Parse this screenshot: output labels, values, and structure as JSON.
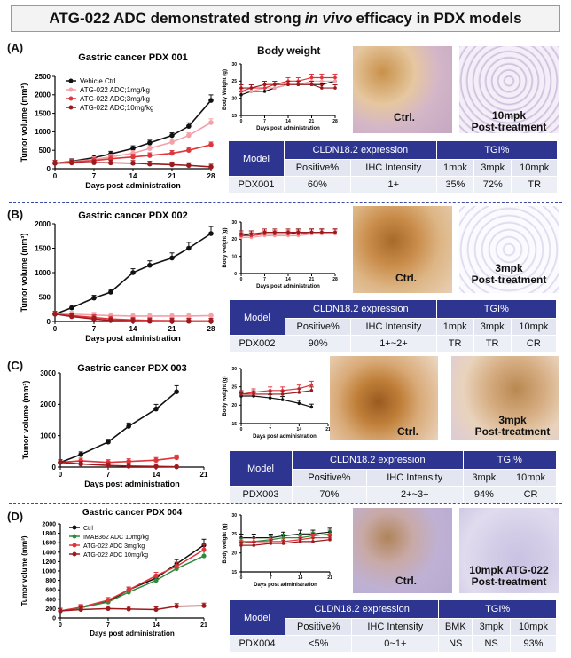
{
  "title": {
    "pre": "ATG-022 ADC demonstrated strong",
    "italic": "in vivo",
    "post": "efficacy in PDX models"
  },
  "colors": {
    "vehicle": "#111111",
    "dose_low": "#f4a0a8",
    "dose_mid": "#e0353b",
    "dose_high": "#9c1a1d",
    "green": "#2e8b3a",
    "table_header": "#2e3590"
  },
  "panels": [
    {
      "label": "(A)",
      "chart_title": "Gastric cancer PDX 001",
      "body_weight_title": "Body weight",
      "ctrl_caption": "Ctrl.",
      "treat_caption_line1": "10mpk",
      "treat_caption_line2": "Post-treatment",
      "table": {
        "h_model": "Model",
        "h_expr": "CLDN18.2 expression",
        "h_tgi": "TGI%",
        "sub": [
          "Positive%",
          "IHC Intensity",
          "1mpk",
          "3mpk",
          "10mpk"
        ],
        "row": [
          "PDX001",
          "60%",
          "1+",
          "35%",
          "72%",
          "TR"
        ]
      }
    },
    {
      "label": "(B)",
      "chart_title": "Gastric cancer PDX 002",
      "ctrl_caption": "Ctrl.",
      "treat_caption_line1": "3mpk",
      "treat_caption_line2": "Post-treatment",
      "table": {
        "h_model": "Model",
        "h_expr": "CLDN18.2 expression",
        "h_tgi": "TGI%",
        "sub": [
          "Positive%",
          "IHC Intensity",
          "1mpk",
          "3mpk",
          "10mpk"
        ],
        "row": [
          "PDX002",
          "90%",
          "1+~2+",
          "TR",
          "TR",
          "CR"
        ]
      }
    },
    {
      "label": "(C)",
      "chart_title": "Gastric cancer PDX 003",
      "ctrl_caption": "Ctrl.",
      "treat_caption_line1": "3mpk",
      "treat_caption_line2": "Post-treatment",
      "table": {
        "h_model": "Model",
        "h_expr": "CLDN18.2 expression",
        "h_tgi": "TGI%",
        "sub": [
          "Positive%",
          "IHC Intensity",
          "3mpk",
          "10mpk"
        ],
        "row": [
          "PDX003",
          "70%",
          "2+~3+",
          "94%",
          "CR"
        ]
      }
    },
    {
      "label": "(D)",
      "chart_title": "Gastric cancer PDX 004",
      "ctrl_caption": "Ctrl.",
      "treat_caption_line1": "10mpk ATG-022",
      "treat_caption_line2": "Post-treatment",
      "table": {
        "h_model": "Model",
        "h_expr": "CLDN18.2 expression",
        "h_tgi": "TGI%",
        "sub": [
          "Positive%",
          "IHC Intensity",
          "BMK",
          "3mpk",
          "10mpk"
        ],
        "row": [
          "PDX004",
          "<5%",
          "0~1+",
          "NS",
          "NS",
          "93%"
        ]
      }
    }
  ],
  "chart_data": [
    {
      "type": "line",
      "title": "Gastric cancer PDX 001",
      "xlabel": "Days post administration",
      "ylabel": "Tumor volume (mm³)",
      "xlim": [
        0,
        28
      ],
      "ylim": [
        0,
        2500
      ],
      "xticks": [
        0,
        7,
        14,
        21,
        28
      ],
      "yticks": [
        0,
        500,
        1000,
        1500,
        2000,
        2500
      ],
      "legend": [
        "Vehicle Ctrl",
        "ATG-022 ADC;1mg/kg",
        "ATG-022 ADC;3mg/kg",
        "ATG-022 ADC;10mg/kg"
      ],
      "series": [
        {
          "name": "Vehicle Ctrl",
          "color": "vehicle",
          "x": [
            0,
            3,
            7,
            10,
            14,
            17,
            21,
            24,
            28
          ],
          "y": [
            150,
            200,
            300,
            400,
            550,
            700,
            900,
            1150,
            1850
          ]
        },
        {
          "name": "ATG-022 ADC;1mg/kg",
          "color": "dose_low",
          "x": [
            0,
            3,
            7,
            10,
            14,
            17,
            21,
            24,
            28
          ],
          "y": [
            150,
            190,
            250,
            320,
            420,
            550,
            720,
            900,
            1250
          ]
        },
        {
          "name": "ATG-022 ADC;3mg/kg",
          "color": "dose_mid",
          "x": [
            0,
            3,
            7,
            10,
            14,
            17,
            21,
            24,
            28
          ],
          "y": [
            150,
            180,
            220,
            270,
            320,
            360,
            420,
            500,
            650
          ]
        },
        {
          "name": "ATG-022 ADC;10mg/kg",
          "color": "dose_high",
          "x": [
            0,
            3,
            7,
            10,
            14,
            17,
            21,
            24,
            28
          ],
          "y": [
            150,
            160,
            165,
            160,
            150,
            130,
            110,
            90,
            50
          ]
        }
      ]
    },
    {
      "type": "line",
      "title": "Body weight",
      "xlabel": "Days post administration",
      "ylabel": "Body Weight (g)",
      "xlim": [
        0,
        28
      ],
      "ylim": [
        15,
        30
      ],
      "xticks": [
        0,
        7,
        14,
        21,
        28
      ],
      "yticks": [
        15,
        20,
        25,
        30
      ],
      "series": [
        {
          "name": "Vehicle Ctrl",
          "color": "vehicle",
          "x": [
            0,
            3,
            7,
            10,
            14,
            17,
            21,
            24,
            28
          ],
          "y": [
            21,
            22,
            22,
            23,
            24,
            24,
            24,
            24,
            25
          ]
        },
        {
          "name": "1mg/kg",
          "color": "dose_low",
          "x": [
            0,
            3,
            7,
            10,
            14,
            17,
            21,
            24,
            28
          ],
          "y": [
            22,
            22,
            23,
            23,
            24,
            24,
            25,
            25,
            25
          ]
        },
        {
          "name": "3mg/kg",
          "color": "dose_mid",
          "x": [
            0,
            3,
            7,
            10,
            14,
            17,
            21,
            24,
            28
          ],
          "y": [
            22,
            23,
            23,
            24,
            25,
            25,
            26,
            26,
            26
          ]
        },
        {
          "name": "10mg/kg",
          "color": "dose_high",
          "x": [
            0,
            3,
            7,
            10,
            14,
            17,
            21,
            24,
            28
          ],
          "y": [
            23,
            23,
            24,
            24,
            24,
            24,
            24,
            23,
            23
          ]
        }
      ]
    },
    {
      "type": "line",
      "title": "Gastric cancer PDX 002",
      "xlabel": "Days post administration",
      "ylabel": "Tumor volume (mm³)",
      "xlim": [
        0,
        28
      ],
      "ylim": [
        0,
        2000
      ],
      "xticks": [
        0,
        7,
        14,
        21,
        28
      ],
      "yticks": [
        0,
        500,
        1000,
        1500,
        2000
      ],
      "series": [
        {
          "name": "Vehicle Ctrl",
          "color": "vehicle",
          "x": [
            0,
            3,
            7,
            10,
            14,
            17,
            21,
            24,
            28
          ],
          "y": [
            150,
            280,
            480,
            600,
            1000,
            1150,
            1300,
            1500,
            1800
          ]
        },
        {
          "name": "1mg/kg",
          "color": "dose_low",
          "x": [
            0,
            3,
            7,
            10,
            14,
            17,
            21,
            24,
            28
          ],
          "y": [
            150,
            150,
            130,
            120,
            110,
            110,
            110,
            110,
            120
          ]
        },
        {
          "name": "3mg/kg",
          "color": "dose_mid",
          "x": [
            0,
            3,
            7,
            10,
            14,
            17,
            21,
            24,
            28
          ],
          "y": [
            150,
            120,
            80,
            50,
            30,
            20,
            15,
            10,
            10
          ]
        },
        {
          "name": "10mg/kg",
          "color": "dose_high",
          "x": [
            0,
            3,
            7,
            10,
            14,
            17,
            21,
            24,
            28
          ],
          "y": [
            150,
            100,
            50,
            20,
            10,
            5,
            5,
            5,
            5
          ]
        }
      ]
    },
    {
      "type": "line",
      "title": "Body weight",
      "xlabel": "Days post administration",
      "ylabel": "Body weight (g)",
      "xlim": [
        0,
        28
      ],
      "ylim": [
        0,
        30
      ],
      "xticks": [
        0,
        7,
        14,
        21,
        28
      ],
      "yticks": [
        0,
        10,
        20,
        30
      ],
      "series": [
        {
          "name": "Vehicle Ctrl",
          "color": "vehicle",
          "x": [
            0,
            3,
            7,
            10,
            14,
            17,
            21,
            24,
            28
          ],
          "y": [
            22,
            23,
            23,
            23,
            23,
            24,
            24,
            24,
            24
          ]
        },
        {
          "name": "1mg/kg",
          "color": "dose_low",
          "x": [
            0,
            3,
            7,
            10,
            14,
            17,
            21,
            24,
            28
          ],
          "y": [
            21,
            21,
            22,
            22,
            22,
            22,
            23,
            23,
            23
          ]
        },
        {
          "name": "3mg/kg",
          "color": "dose_mid",
          "x": [
            0,
            3,
            7,
            10,
            14,
            17,
            21,
            24,
            28
          ],
          "y": [
            22,
            22,
            23,
            23,
            23,
            23,
            24,
            24,
            24
          ]
        },
        {
          "name": "10mg/kg",
          "color": "dose_high",
          "x": [
            0,
            3,
            7,
            10,
            14,
            17,
            21,
            24,
            28
          ],
          "y": [
            23,
            23,
            24,
            24,
            24,
            24,
            24,
            24,
            24
          ]
        }
      ]
    },
    {
      "type": "line",
      "title": "Gastric cancer PDX 003",
      "xlabel": "Days post administration",
      "ylabel": "Tumor volume (mm³)",
      "xlim": [
        0,
        21
      ],
      "ylim": [
        0,
        3000
      ],
      "xticks": [
        0,
        7,
        14,
        21
      ],
      "yticks": [
        0,
        500,
        1000,
        1500,
        2000,
        2500,
        3000
      ],
      "series": [
        {
          "name": "Vehicle Ctrl",
          "color": "vehicle",
          "x": [
            0,
            3,
            7,
            10,
            14,
            17
          ],
          "y": [
            150,
            400,
            800,
            1300,
            1850,
            2400
          ]
        },
        {
          "name": "3mg/kg",
          "color": "dose_mid",
          "x": [
            0,
            3,
            7,
            10,
            14,
            17
          ],
          "y": [
            150,
            200,
            150,
            180,
            220,
            300
          ]
        },
        {
          "name": "10mg/kg",
          "color": "dose_high",
          "x": [
            0,
            3,
            7,
            10,
            14,
            17
          ],
          "y": [
            150,
            100,
            50,
            30,
            20,
            10
          ]
        }
      ]
    },
    {
      "type": "line",
      "title": "Body weight",
      "xlabel": "Days post administration",
      "ylabel": "Body weight (g)",
      "xlim": [
        0,
        21
      ],
      "ylim": [
        15,
        30
      ],
      "xticks": [
        0,
        7,
        14,
        21
      ],
      "yticks": [
        15,
        20,
        25,
        30
      ],
      "series": [
        {
          "name": "Vehicle Ctrl",
          "color": "vehicle",
          "x": [
            0,
            3,
            7,
            10,
            14,
            17
          ],
          "y": [
            22.5,
            22.5,
            22,
            21.5,
            20.5,
            19.5
          ]
        },
        {
          "name": "3mg/kg",
          "color": "dose_mid",
          "x": [
            0,
            3,
            7,
            10,
            14,
            17
          ],
          "y": [
            23,
            23.5,
            24,
            24,
            24.5,
            25.5
          ]
        },
        {
          "name": "10mg/kg",
          "color": "dose_high",
          "x": [
            0,
            3,
            7,
            10,
            14,
            17
          ],
          "y": [
            23,
            23,
            23,
            23,
            23.5,
            24
          ]
        }
      ]
    },
    {
      "type": "line",
      "title": "Gastric cancer PDX 004",
      "xlabel": "Days post administration",
      "ylabel": "Tumor volume (mm³)",
      "xlim": [
        0,
        21
      ],
      "ylim": [
        0,
        2000
      ],
      "xticks": [
        0,
        7,
        14,
        21
      ],
      "yticks": [
        0,
        200,
        400,
        600,
        800,
        1000,
        1200,
        1400,
        1600,
        1800,
        2000
      ],
      "legend": [
        "Ctrl",
        "IMAB362 ADC 10mg/kg",
        "ATG-022 ADC 3mg/kg",
        "ATG-022 ADC 10mg/kg"
      ],
      "series": [
        {
          "name": "Ctrl",
          "color": "vehicle",
          "x": [
            0,
            3,
            7,
            10,
            14,
            17,
            21
          ],
          "y": [
            150,
            220,
            350,
            600,
            850,
            1150,
            1550
          ]
        },
        {
          "name": "IMAB362 ADC 10mg/kg",
          "color": "green",
          "x": [
            0,
            3,
            7,
            10,
            14,
            17,
            21
          ],
          "y": [
            150,
            220,
            340,
            550,
            800,
            1050,
            1320
          ]
        },
        {
          "name": "ATG-022 ADC 3mg/kg",
          "color": "dose_mid",
          "x": [
            0,
            3,
            7,
            10,
            14,
            17,
            21
          ],
          "y": [
            150,
            230,
            380,
            600,
            900,
            1100,
            1450
          ]
        },
        {
          "name": "ATG-022 ADC 10mg/kg",
          "color": "dose_high",
          "x": [
            0,
            3,
            7,
            10,
            14,
            17,
            21
          ],
          "y": [
            150,
            180,
            200,
            190,
            180,
            250,
            260
          ]
        }
      ]
    },
    {
      "type": "line",
      "title": "Body weight",
      "xlabel": "Days post administration",
      "ylabel": "Body weight (g)",
      "xlim": [
        0,
        21
      ],
      "ylim": [
        15,
        30
      ],
      "xticks": [
        0,
        7,
        14,
        21
      ],
      "yticks": [
        15,
        20,
        25,
        30
      ],
      "series": [
        {
          "name": "Ctrl",
          "color": "vehicle",
          "x": [
            0,
            3,
            7,
            10,
            14,
            17,
            21
          ],
          "y": [
            24,
            24,
            24,
            24.5,
            25,
            25,
            25.5
          ]
        },
        {
          "name": "IMAB362 ADC 10mg/kg",
          "color": "green",
          "x": [
            0,
            3,
            7,
            10,
            14,
            17,
            21
          ],
          "y": [
            23,
            23,
            23.5,
            24,
            24,
            24.5,
            25
          ]
        },
        {
          "name": "ATG-022 ADC 3mg/kg",
          "color": "dose_mid",
          "x": [
            0,
            3,
            7,
            10,
            14,
            17,
            21
          ],
          "y": [
            22.5,
            23,
            23,
            23,
            23.5,
            24,
            24
          ]
        },
        {
          "name": "ATG-022 ADC 10mg/kg",
          "color": "dose_high",
          "x": [
            0,
            3,
            7,
            10,
            14,
            17,
            21
          ],
          "y": [
            22,
            22,
            22.5,
            22.5,
            23,
            23,
            23.5
          ]
        }
      ]
    }
  ]
}
